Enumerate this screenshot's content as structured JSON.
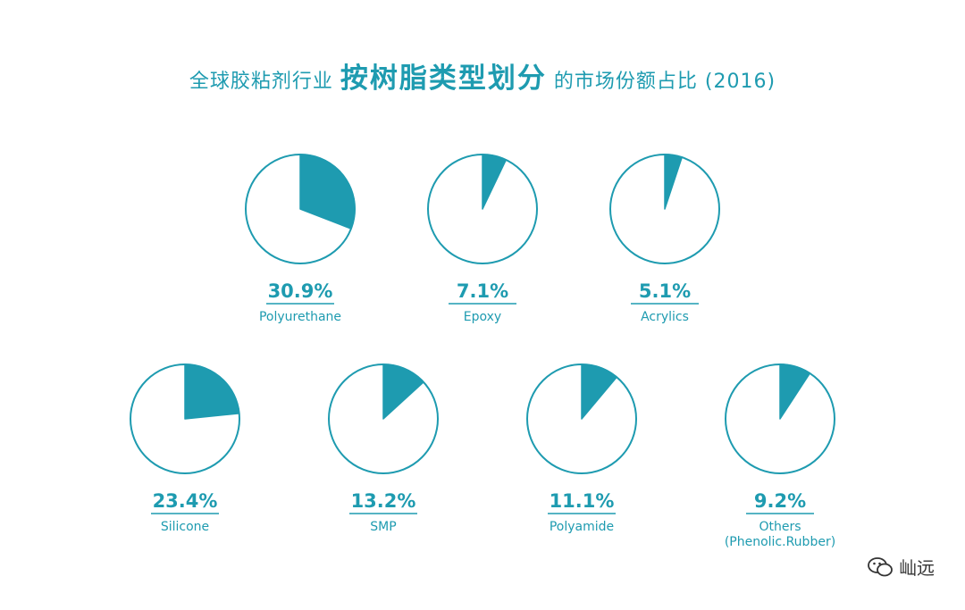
{
  "header": {
    "prefix": "全球胶粘剂行业",
    "emphasis": "按树脂类型划分",
    "suffix": "的市场份额占比 (2016)"
  },
  "colors": {
    "accent": "#1e9bb0",
    "background": "#ffffff",
    "watermark": "#333333"
  },
  "chart_data": {
    "type": "pie",
    "series": [
      {
        "name": "Polyurethane",
        "value": 30.9,
        "value_label": "30.9%"
      },
      {
        "name": "Epoxy",
        "value": 7.1,
        "value_label": "7.1%"
      },
      {
        "name": "Acrylics",
        "value": 5.1,
        "value_label": "5.1%"
      },
      {
        "name": "Silicone",
        "value": 23.4,
        "value_label": "23.4%"
      },
      {
        "name": "SMP",
        "value": 13.2,
        "value_label": "13.2%"
      },
      {
        "name": "Polyamide",
        "value": 11.1,
        "value_label": "11.1%"
      },
      {
        "name": "Others",
        "name_line2": "(Phenolic.Rubber)",
        "value": 9.2,
        "value_label": "9.2%"
      }
    ]
  },
  "watermark": {
    "icon": "wechat-icon",
    "text": "屾远"
  }
}
